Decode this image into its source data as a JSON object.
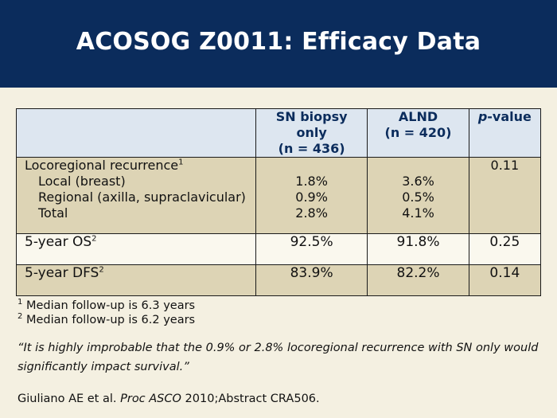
{
  "title": "ACOSOG Z0011: Efficacy Data",
  "table": {
    "header": {
      "sn": "SN biopsy only",
      "sn_n": "(n = 436)",
      "alnd": "ALND",
      "alnd_n": "(n = 420)",
      "p_italic": "p",
      "p_rest": "-value"
    },
    "locoregional": {
      "label": "Locoregional recurrence",
      "sup": "1",
      "p": "0.11",
      "sub": [
        {
          "label": "Local (breast)",
          "sn": "1.8%",
          "alnd": "3.6%"
        },
        {
          "label": "Regional (axilla, supraclavicular)",
          "sn": "0.9%",
          "alnd": "0.5%"
        },
        {
          "label": "Total",
          "sn": "2.8%",
          "alnd": "4.1%"
        }
      ]
    },
    "os": {
      "label": "5-year OS",
      "sup": "2",
      "sn": "92.5%",
      "alnd": "91.8%",
      "p": "0.25"
    },
    "dfs": {
      "label": "5-year DFS",
      "sup": "2",
      "sn": "83.9%",
      "alnd": "82.2%",
      "p": "0.14"
    }
  },
  "footnotes": [
    {
      "mark": "1",
      "text": "Median follow-up is 6.3 years"
    },
    {
      "mark": "2",
      "text": "Median follow-up is 6.2 years"
    }
  ],
  "quote": "“It is highly improbable that the 0.9% or 2.8% locoregional recurrence with SN only would significantly impact survival.”",
  "citation": {
    "authors": "Giuliano AE et al.",
    "journal": "Proc ASCO",
    "rest": "2010;Abstract CRA506."
  }
}
